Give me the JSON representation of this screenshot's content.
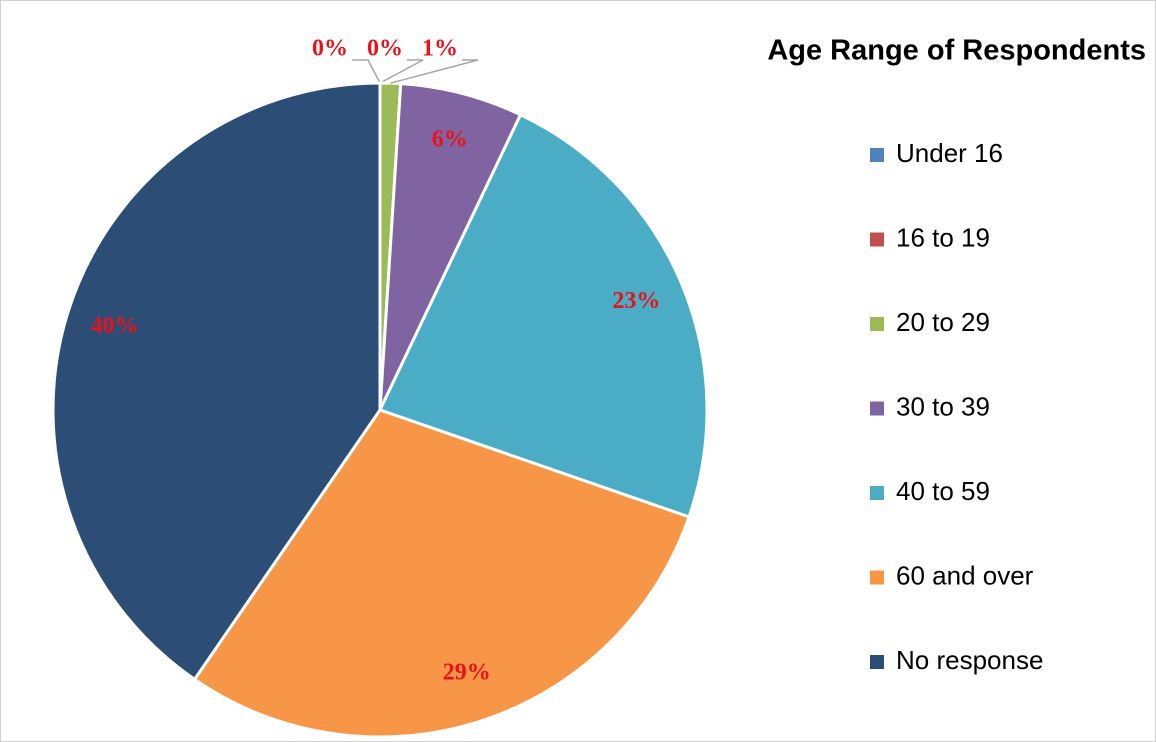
{
  "chart_data": {
    "type": "pie",
    "title": "Age Range of Respondents",
    "categories": [
      "Under 16",
      "16 to 19",
      "20 to 29",
      "30 to 39",
      "40 to 59",
      "60 and over",
      "No response"
    ],
    "values": [
      0,
      0,
      1,
      6,
      23,
      29,
      40
    ],
    "value_labels": [
      "0%",
      "0%",
      "1%",
      "6%",
      "23%",
      "29%",
      "40%"
    ],
    "colors": [
      "#4f81bd",
      "#c0504d",
      "#9bbb59",
      "#8064a2",
      "#4bacc6",
      "#f79646",
      "#2c4d75"
    ],
    "legend": "right"
  }
}
